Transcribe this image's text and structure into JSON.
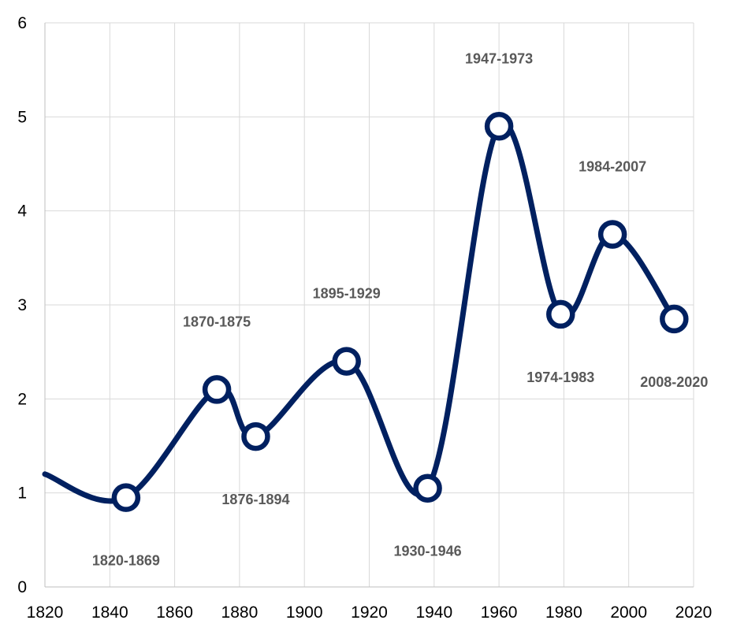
{
  "chart_data": {
    "type": "line",
    "title": "",
    "xlabel": "",
    "ylabel": "",
    "xlim": [
      1820,
      2020
    ],
    "ylim": [
      0,
      6
    ],
    "x_ticks": [
      "1820",
      "1840",
      "1860",
      "1880",
      "1900",
      "1920",
      "1940",
      "1960",
      "1980",
      "2000",
      "2020"
    ],
    "y_ticks": [
      "0",
      "1",
      "2",
      "3",
      "4",
      "5",
      "6"
    ],
    "grid": true,
    "smooth": true,
    "legend": "none",
    "line_start": {
      "x": 1820,
      "y": 1.2
    },
    "series": [
      {
        "color": "#002060",
        "points": [
          {
            "x": 1845,
            "y": 0.95,
            "label": "1820-1869",
            "label_position": "below"
          },
          {
            "x": 1873,
            "y": 2.1,
            "label": "1870-1875",
            "label_position": "above"
          },
          {
            "x": 1885,
            "y": 1.6,
            "label": "1876-1894",
            "label_position": "below"
          },
          {
            "x": 1913,
            "y": 2.4,
            "label": "1895-1929",
            "label_position": "above"
          },
          {
            "x": 1938,
            "y": 1.05,
            "label": "1930-1946",
            "label_position": "below"
          },
          {
            "x": 1960,
            "y": 4.9,
            "label": "1947-1973",
            "label_position": "above"
          },
          {
            "x": 1979,
            "y": 2.9,
            "label": "1974-1983",
            "label_position": "below"
          },
          {
            "x": 1995,
            "y": 3.75,
            "label": "1984-2007",
            "label_position": "above"
          },
          {
            "x": 2014,
            "y": 2.85,
            "label": "2008-2020",
            "label_position": "below"
          }
        ]
      }
    ]
  }
}
